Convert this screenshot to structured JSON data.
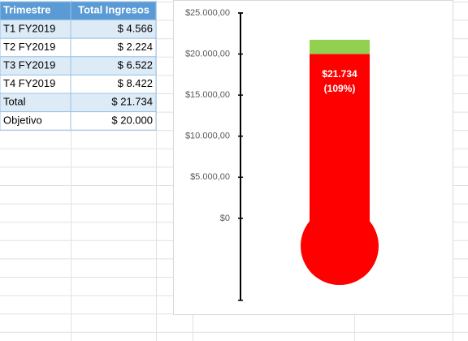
{
  "table": {
    "headers": [
      "Trimestre",
      "Total Ingresos"
    ],
    "rows": [
      [
        "T1 FY2019",
        "$ 4.566"
      ],
      [
        "T2 FY2019",
        "$ 2.224"
      ],
      [
        "T3 FY2019",
        "$ 6.522"
      ],
      [
        "T4 FY2019",
        "$ 8.422"
      ],
      [
        "Total",
        "$ 21.734"
      ],
      [
        "Objetivo",
        "$ 20.000"
      ]
    ]
  },
  "chart_data": {
    "type": "thermometer",
    "total": 21734,
    "target": 20000,
    "value_labels": [
      "$21.734",
      "(109%)"
    ],
    "color": "#ff0000",
    "excess_color": "#92d050",
    "ylim": [
      -10000,
      25000
    ],
    "yticks": [
      {
        "value": 0,
        "label": "$0"
      },
      {
        "value": 5000,
        "label": "$5.000,00"
      },
      {
        "value": 10000,
        "label": "$10.000,00"
      },
      {
        "value": 15000,
        "label": "$15.000,00"
      },
      {
        "value": 20000,
        "label": "$20.000,00"
      },
      {
        "value": 25000,
        "label": "$25.000,00"
      }
    ]
  }
}
